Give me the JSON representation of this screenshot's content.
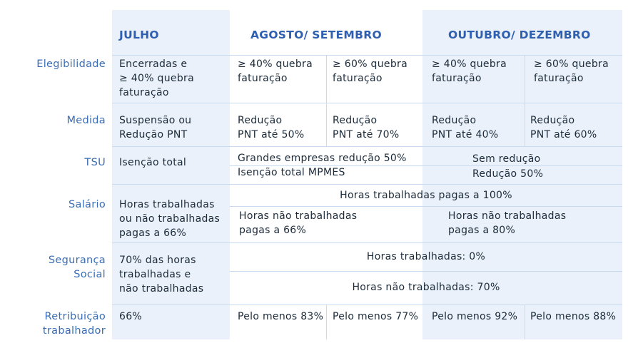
{
  "headers": {
    "julho": "JULHO",
    "agosto_setembro": "AGOSTO/ SETEMBRO",
    "outubro_dezembro": "OUTUBRO/ DEZEMBRO"
  },
  "rows": {
    "elegibilidade": {
      "label": "Elegibilidade",
      "julho": [
        "Encerradas e",
        "≥ 40% quebra",
        "faturação"
      ],
      "ago_40": [
        "≥ 40% quebra",
        "faturação"
      ],
      "ago_60": [
        "≥ 60% quebra",
        "faturação"
      ],
      "out_40": [
        "≥ 40% quebra",
        "faturação"
      ],
      "out_60": [
        "≥ 60% quebra",
        "faturação"
      ]
    },
    "medida": {
      "label": "Medida",
      "julho": [
        "Suspensão ou",
        "Redução PNT"
      ],
      "ago_40": [
        "Redução",
        "PNT até 50%"
      ],
      "ago_60": [
        "Redução",
        "PNT até 70%"
      ],
      "out_40": [
        "Redução",
        "PNT até 40%"
      ],
      "out_60": [
        "Redução",
        "PNT até 60%"
      ]
    },
    "tsu": {
      "label": "TSU",
      "julho": "Isenção total",
      "ago_line1": "Grandes empresas redução 50%",
      "ago_line2": "Isenção total MPMES",
      "out_line1": "Sem redução",
      "out_line2": "Redução 50%"
    },
    "salario": {
      "label": "Salário",
      "julho": [
        "Horas trabalhadas",
        "ou não trabalhadas",
        "pagas a 66%"
      ],
      "span_all": "Horas trabalhadas pagas a 100%",
      "ago": [
        "Horas não trabalhadas",
        "pagas a 66%"
      ],
      "out": [
        "Horas não trabalhadas",
        "pagas a 80%"
      ]
    },
    "seguranca_social": {
      "label": [
        "Segurança",
        "Social"
      ],
      "julho": [
        "70% das horas",
        "trabalhadas e",
        "não trabalhadas"
      ],
      "span_1": "Horas trabalhadas: 0%",
      "span_2": "Horas não trabalhadas: 70%"
    },
    "retribuicao": {
      "label": [
        "Retribuição",
        "trabalhador"
      ],
      "julho": "66%",
      "ago_40": "Pelo menos 83%",
      "ago_60": "Pelo menos 77%",
      "out_40": "Pelo menos 92%",
      "out_60": "Pelo menos 88%"
    }
  },
  "colors": {
    "band": "#eaf1fa",
    "header": "#2f5fb0",
    "label": "#3a6db5",
    "divider": "#c9dbef"
  }
}
